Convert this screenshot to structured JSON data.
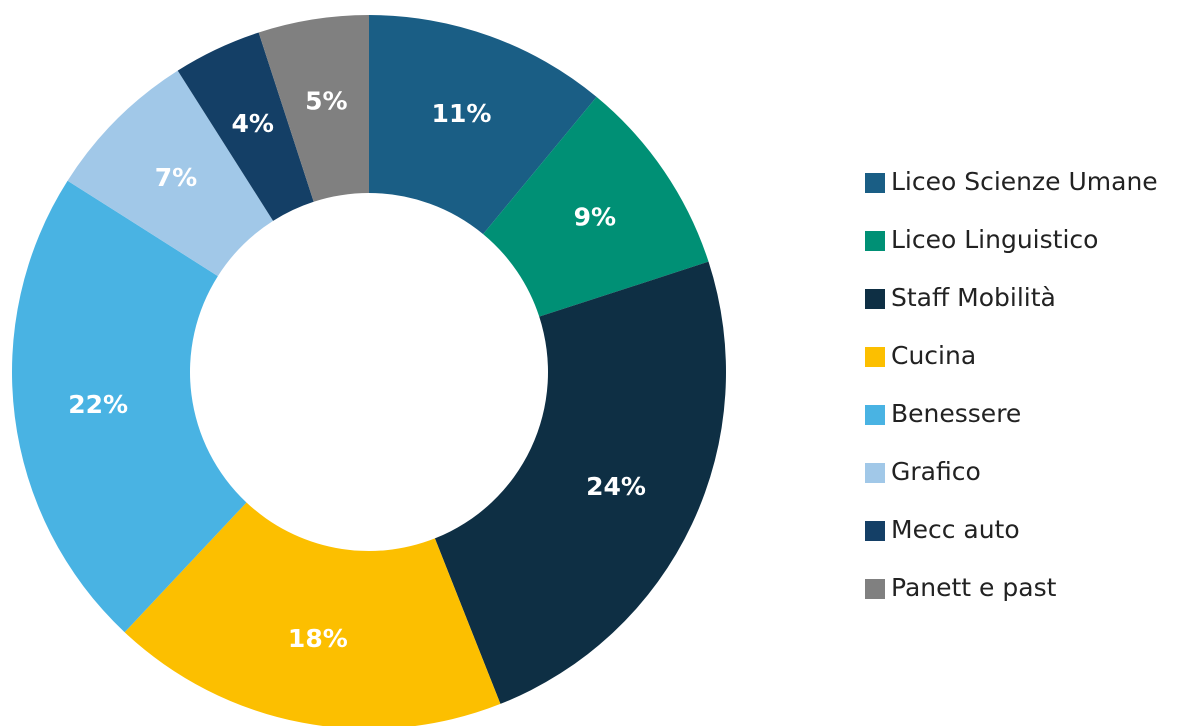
{
  "chart_data": {
    "type": "donut",
    "categories": [
      "Liceo Scienze Umane",
      "Liceo Linguistico",
      "Staff Mobilità",
      "Cucina",
      "Benessere",
      "Grafico",
      "Mecc auto",
      "Panett e past"
    ],
    "values": [
      11,
      9,
      24,
      18,
      22,
      7,
      4,
      5
    ],
    "value_labels": [
      "11%",
      "9%",
      "24%",
      "18%",
      "22%",
      "7%",
      "4%",
      "5%"
    ],
    "colors": [
      "#1a5e85",
      "#009075",
      "#0e2f44",
      "#fcbf00",
      "#49b3e3",
      "#a1c8e8",
      "#143f66",
      "#808080"
    ],
    "legend": "right"
  }
}
